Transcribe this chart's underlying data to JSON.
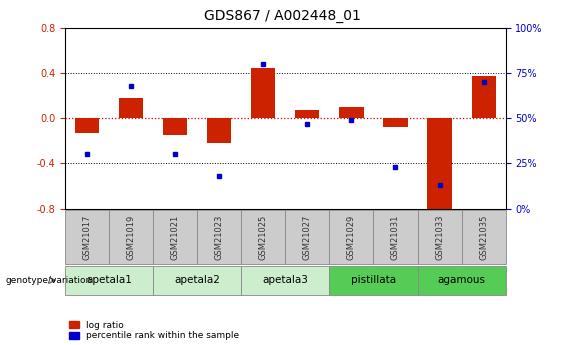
{
  "title": "GDS867 / A002448_01",
  "samples": [
    "GSM21017",
    "GSM21019",
    "GSM21021",
    "GSM21023",
    "GSM21025",
    "GSM21027",
    "GSM21029",
    "GSM21031",
    "GSM21033",
    "GSM21035"
  ],
  "log_ratio": [
    -0.13,
    0.18,
    -0.15,
    -0.22,
    0.44,
    0.07,
    0.1,
    -0.08,
    -0.85,
    0.37
  ],
  "percentile_rank": [
    30,
    68,
    30,
    18,
    80,
    47,
    49,
    23,
    13,
    70
  ],
  "ylim_left": [
    -0.8,
    0.8
  ],
  "ylim_right": [
    0,
    100
  ],
  "yticks_left": [
    -0.8,
    -0.4,
    0.0,
    0.4,
    0.8
  ],
  "yticks_right": [
    0,
    25,
    50,
    75,
    100
  ],
  "groups": [
    {
      "label": "apetala1",
      "start": 0,
      "end": 2,
      "color": "#cceecc"
    },
    {
      "label": "apetala2",
      "start": 2,
      "end": 4,
      "color": "#cceecc"
    },
    {
      "label": "apetala3",
      "start": 4,
      "end": 6,
      "color": "#cceecc"
    },
    {
      "label": "pistillata",
      "start": 6,
      "end": 8,
      "color": "#55cc55"
    },
    {
      "label": "agamous",
      "start": 8,
      "end": 10,
      "color": "#55cc55"
    }
  ],
  "bar_color": "#cc2200",
  "dot_color": "#0000cc",
  "zero_line_color": "#cc0000",
  "grid_color": "#000000",
  "sample_box_color": "#cccccc",
  "sample_text_color": "#333333",
  "title_fontsize": 10,
  "tick_fontsize": 7,
  "label_fontsize": 7,
  "group_fontsize": 7.5,
  "legend_fontsize": 6.5
}
